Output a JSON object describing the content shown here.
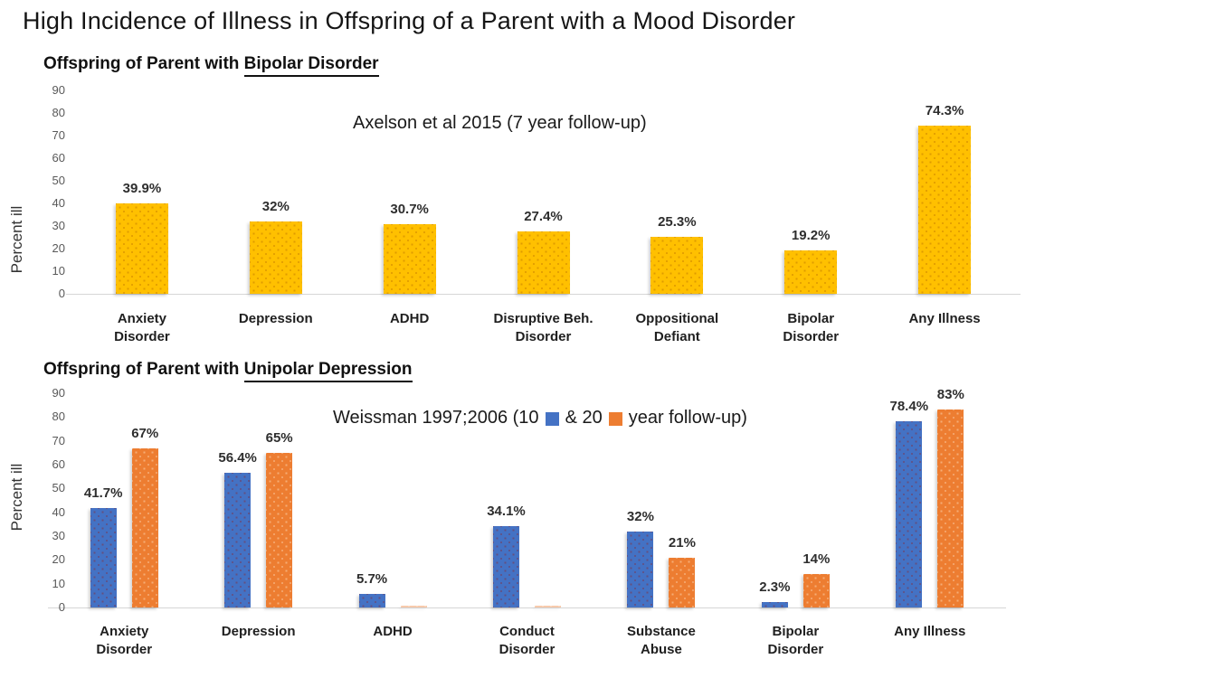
{
  "slide": {
    "title": "High Incidence of Illness in Offspring of a Parent with a Mood Disorder"
  },
  "chart_data": [
    {
      "type": "bar",
      "heading": {
        "prefix": "Offspring of Parent with ",
        "underlined": "Bipolar Disorder"
      },
      "annotation": "Axelson et al 2015 (7 year follow-up)",
      "ylabel": "Percent ill",
      "ylim": [
        0,
        90
      ],
      "yticks": [
        0,
        10,
        20,
        30,
        40,
        50,
        60,
        70,
        80,
        90
      ],
      "grid": false,
      "legend_position": "none",
      "categories": [
        [
          "Anxiety",
          "Disorder"
        ],
        [
          "Depression"
        ],
        [
          "ADHD"
        ],
        [
          "Disruptive Beh.",
          "Disorder"
        ],
        [
          "Oppositional",
          "Defiant"
        ],
        [
          "Bipolar",
          "Disorder"
        ],
        [
          "Any Illness"
        ]
      ],
      "series": [
        {
          "name": "7 year follow-up",
          "color": "#FFC000",
          "values": [
            39.9,
            32,
            30.7,
            27.4,
            25.3,
            19.2,
            74.3
          ],
          "labels": [
            "39.9%",
            "32%",
            "30.7%",
            "27.4%",
            "25.3%",
            "19.2%",
            "74.3%"
          ]
        }
      ]
    },
    {
      "type": "bar",
      "heading": {
        "prefix": "Offspring of Parent with ",
        "underlined": "Unipolar Depression"
      },
      "annotation_parts": {
        "before": "Weissman 1997;2006 (10",
        "middle": "& 20",
        "after": "year follow-up)"
      },
      "ylabel": "Percent ill",
      "ylim": [
        0,
        90
      ],
      "yticks": [
        0,
        10,
        20,
        30,
        40,
        50,
        60,
        70,
        80,
        90
      ],
      "grid": false,
      "legend_position": "inline-annotation",
      "categories": [
        [
          "Anxiety",
          "Disorder"
        ],
        [
          "Depression"
        ],
        [
          "ADHD"
        ],
        [
          "Conduct",
          "Disorder"
        ],
        [
          "Substance",
          "Abuse"
        ],
        [
          "Bipolar",
          "Disorder"
        ],
        [
          "Any Illness"
        ]
      ],
      "series": [
        {
          "name": "10 year follow-up",
          "color": "#4472C4",
          "values": [
            41.7,
            56.4,
            5.7,
            34.1,
            32,
            2.3,
            78.4
          ],
          "labels": [
            "41.7%",
            "56.4%",
            "5.7%",
            "34.1%",
            "32%",
            "2.3%",
            "78.4%"
          ]
        },
        {
          "name": "20 year follow-up",
          "color": "#ED7D31",
          "values": [
            67,
            65,
            0,
            0,
            21,
            14,
            83
          ],
          "labels": [
            "67%",
            "65%",
            "",
            "",
            "21%",
            "14%",
            "83%"
          ]
        }
      ]
    }
  ]
}
